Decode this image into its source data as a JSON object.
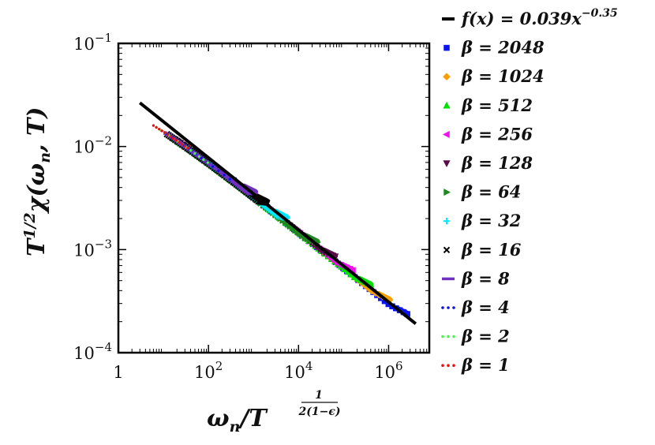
{
  "chart_data": {
    "type": "scatter",
    "xscale": "log",
    "yscale": "log",
    "xlim": [
      1,
      8000000
    ],
    "ylim": [
      0.0001,
      0.1
    ],
    "xticks": [
      {
        "value": 1,
        "base": "1",
        "exp": ""
      },
      {
        "value": 100,
        "base": "10",
        "exp": "2"
      },
      {
        "value": 10000,
        "base": "10",
        "exp": "4"
      },
      {
        "value": 1000000,
        "base": "10",
        "exp": "6"
      }
    ],
    "yticks": [
      {
        "value": 0.0001,
        "base": "10",
        "exp": "−4"
      },
      {
        "value": 0.001,
        "base": "10",
        "exp": "−3"
      },
      {
        "value": 0.01,
        "base": "10",
        "exp": "−2"
      },
      {
        "value": 0.1,
        "base": "10",
        "exp": "−1"
      }
    ],
    "xlabel": {
      "main": "ω",
      "sub": "n",
      "slash": "/T",
      "frac_num": "1",
      "frac_den": "2(1−ϵ)"
    },
    "ylabel": {
      "T": "T",
      "exp": "1/2",
      "chi": "χ(ω",
      "sub": "n",
      "tail": ", T)"
    },
    "fit": {
      "name": "f(x) = 0.039x",
      "exp_label": "−0.35",
      "coef": 0.039,
      "exponent": -0.35,
      "x_range": [
        3,
        4000000
      ],
      "color": "#000000"
    },
    "series": [
      {
        "name": "β = 2048",
        "marker": "square",
        "color": "#0a14f0",
        "x_range": [
          30,
          2600000
        ]
      },
      {
        "name": "β = 1024",
        "marker": "diamond",
        "color": "#f5a000",
        "x_range": [
          25,
          1050000
        ]
      },
      {
        "name": "β = 512",
        "marker": "triangle-up",
        "color": "#00e000",
        "x_range": [
          22,
          400000
        ]
      },
      {
        "name": "β = 256",
        "marker": "triangle-left",
        "color": "#ee10ee",
        "x_range": [
          20,
          160000
        ]
      },
      {
        "name": "β = 128",
        "marker": "triangle-down",
        "color": "#5a0a46",
        "x_range": [
          18,
          65000
        ]
      },
      {
        "name": "β = 64",
        "marker": "triangle-right",
        "color": "#208820",
        "x_range": [
          16,
          26000
        ]
      },
      {
        "name": "β = 32",
        "marker": "plus",
        "color": "#00e8ff",
        "x_range": [
          14,
          5500
        ]
      },
      {
        "name": "β = 16",
        "marker": "cross",
        "color": "#000000",
        "x_range": [
          12,
          2000
        ]
      },
      {
        "name": "β = 8",
        "marker": "line",
        "color": "#7030c0",
        "x_range": [
          11,
          1100
        ]
      },
      {
        "name": "β = 4",
        "marker": "dotted",
        "color": "#1010e0",
        "x_range": [
          9,
          400
        ]
      },
      {
        "name": "β = 2",
        "marker": "dotted",
        "color": "#50f050",
        "x_range": [
          7,
          120
        ]
      },
      {
        "name": "β = 1",
        "marker": "dotted",
        "color": "#e81010",
        "x_range": [
          6,
          40
        ]
      }
    ]
  }
}
